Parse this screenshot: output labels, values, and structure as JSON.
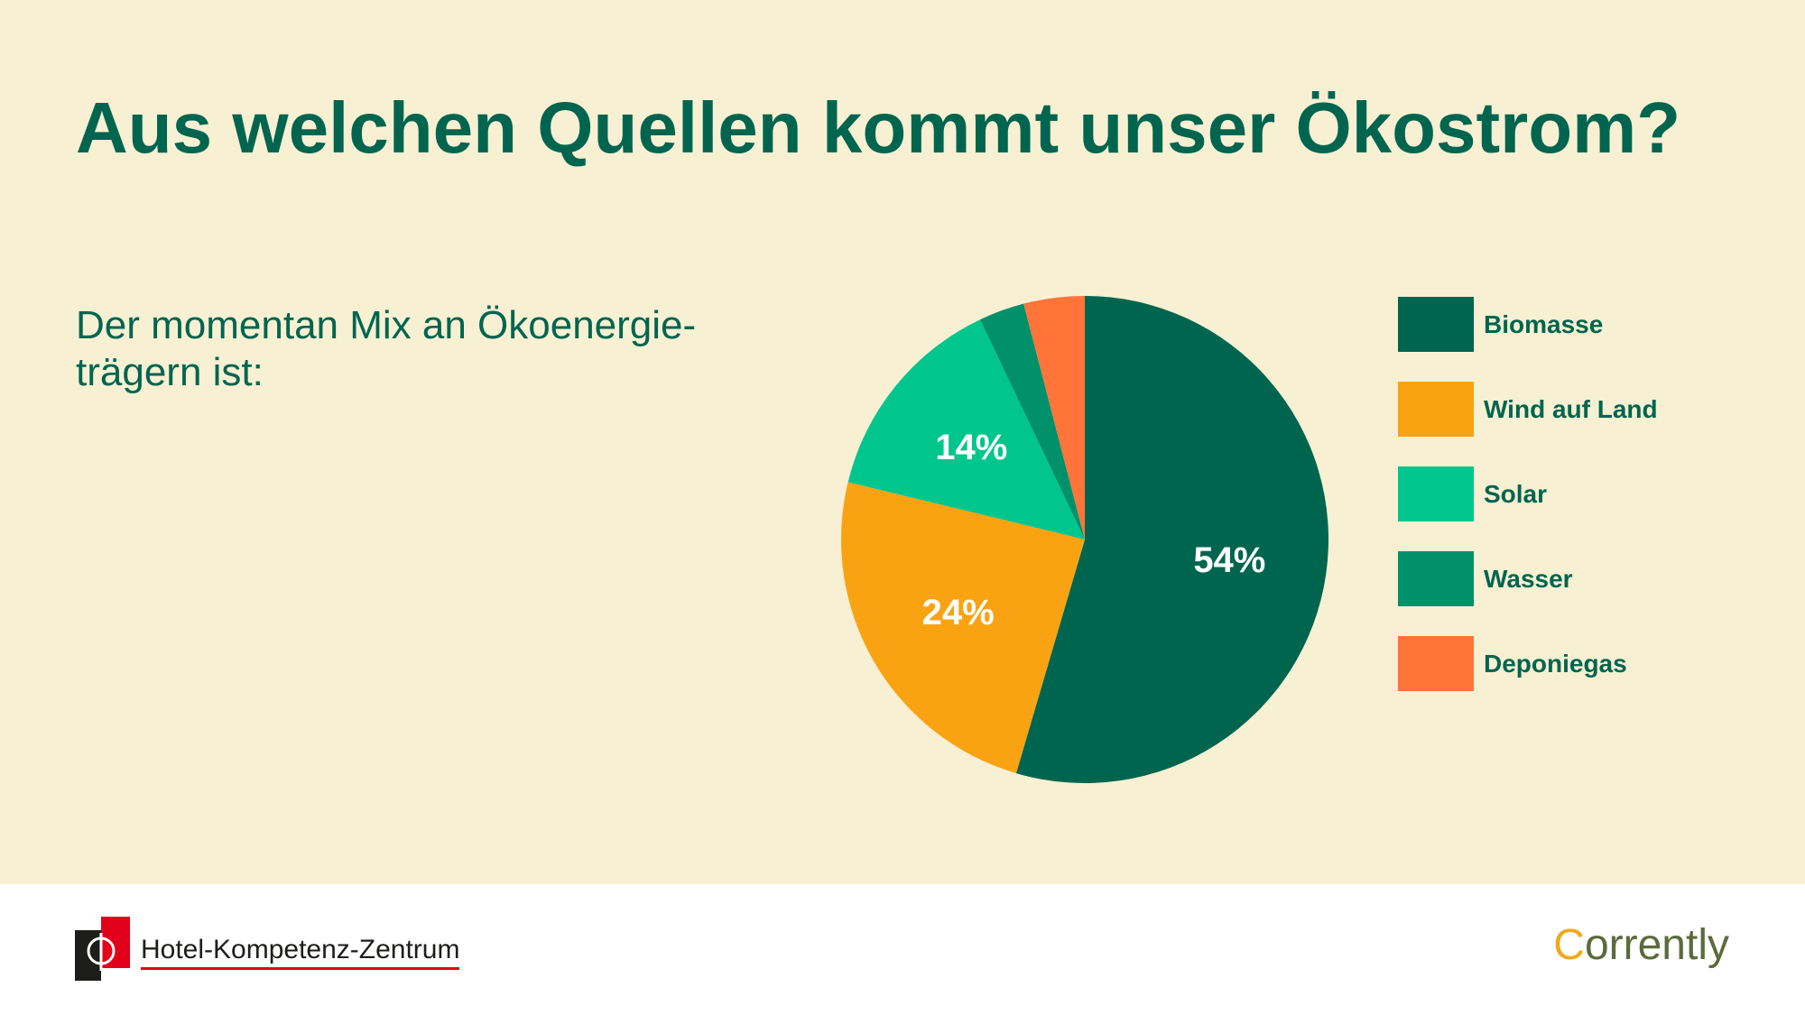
{
  "slide": {
    "title": "Aus welchen Quellen kommt unser Ökostrom?",
    "intro_lines": [
      "Der momentan Mix an Ökoenergie-",
      "trägern ist:"
    ]
  },
  "chart_data": {
    "type": "pie",
    "slices": [
      {
        "name": "Biomasse",
        "value": 54,
        "label": "54%",
        "color": "#00654F"
      },
      {
        "name": "Wind auf Land",
        "value": 24,
        "label": "24%",
        "color": "#F9A313"
      },
      {
        "name": "Solar",
        "value": 14,
        "label": "14%",
        "color": "#00C68E"
      },
      {
        "name": "Wasser",
        "value": 3,
        "color": "#00916A"
      },
      {
        "name": "Deponiegas",
        "value": 4,
        "color": "#FF7439"
      }
    ],
    "legend_position": "right"
  },
  "footer": {
    "partner_logo_icon": "hotel-kompetenz-zentrum-mark",
    "partner_logo_text": "Hotel-Kompetenz-Zentrum",
    "brand_logo_text": "Corrently"
  },
  "colors": {
    "slide_background": "#F8F0D3",
    "footer_background": "#FFFFFF",
    "heading_text": "#00654F",
    "legend_text": "#00654F",
    "slice_label_text": "#FFFFFF",
    "partner_logo_red": "#E2001A",
    "partner_logo_black": "#1D1D1B",
    "brand_logo_initial": "#F3A81C",
    "brand_logo_rest": "#5B6B3C"
  }
}
